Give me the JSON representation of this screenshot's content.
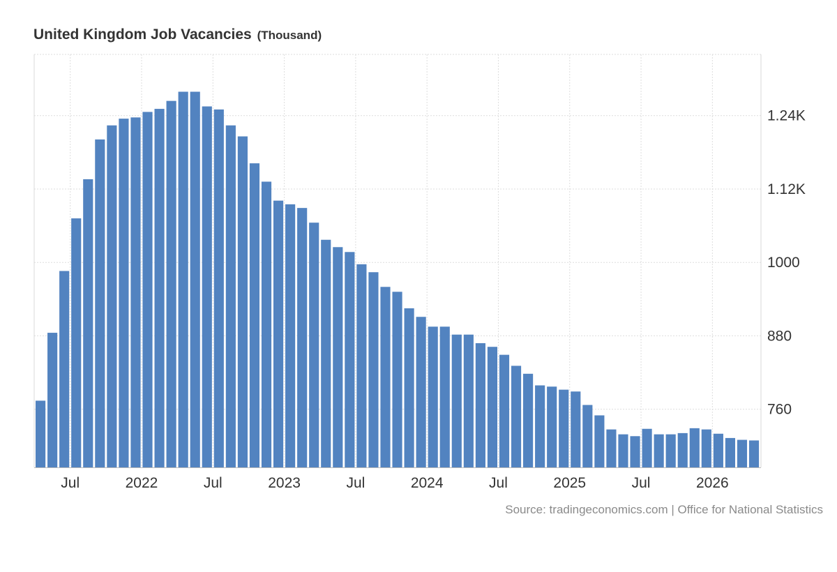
{
  "title": "United Kingdom Job Vacancies",
  "unit": "(Thousand)",
  "source": "Source: tradingeconomics.com | Office for National Statistics",
  "colors": {
    "bar": "#5283c0",
    "grid": "#dddddd",
    "axis_text": "#333333",
    "source_text": "#8a8a8a"
  },
  "chart_data": {
    "type": "bar",
    "title": "United Kingdom Job Vacancies",
    "ylabel": "",
    "xlabel": "",
    "ylim": [
      665,
      1340
    ],
    "y_ticks": [
      {
        "value": 760,
        "label": "760"
      },
      {
        "value": 880,
        "label": "880"
      },
      {
        "value": 1000,
        "label": "1000"
      },
      {
        "value": 1120,
        "label": "1.12K"
      },
      {
        "value": 1240,
        "label": "1.24K"
      }
    ],
    "x_ticks": [
      {
        "date": "2021-07",
        "label": "Jul"
      },
      {
        "date": "2022-01",
        "label": "2022"
      },
      {
        "date": "2022-07",
        "label": "Jul"
      },
      {
        "date": "2023-01",
        "label": "2023"
      },
      {
        "date": "2023-07",
        "label": "Jul"
      },
      {
        "date": "2024-01",
        "label": "2024"
      },
      {
        "date": "2024-07",
        "label": "Jul"
      },
      {
        "date": "2025-01",
        "label": "2025"
      },
      {
        "date": "2025-07",
        "label": "Jul"
      },
      {
        "date": "2026-01",
        "label": "2026"
      }
    ],
    "grid": true,
    "categories": [
      "2021-04",
      "2021-05",
      "2021-06",
      "2021-07",
      "2021-08",
      "2021-09",
      "2021-10",
      "2021-11",
      "2021-12",
      "2022-01",
      "2022-02",
      "2022-03",
      "2022-04",
      "2022-05",
      "2022-06",
      "2022-07",
      "2022-08",
      "2022-09",
      "2022-10",
      "2022-11",
      "2022-12",
      "2023-01",
      "2023-02",
      "2023-03",
      "2023-04",
      "2023-05",
      "2023-06",
      "2023-07",
      "2023-08",
      "2023-09",
      "2023-10",
      "2023-11",
      "2023-12",
      "2024-01",
      "2024-02",
      "2024-03",
      "2024-04",
      "2024-05",
      "2024-06",
      "2024-07",
      "2024-08",
      "2024-09",
      "2024-10",
      "2024-11",
      "2024-12",
      "2025-01",
      "2025-02",
      "2025-03",
      "2025-04",
      "2025-05",
      "2025-06",
      "2025-07",
      "2025-08",
      "2025-09",
      "2025-10",
      "2025-11",
      "2025-12",
      "2026-01",
      "2026-02",
      "2026-03",
      "2026-04"
    ],
    "values": [
      774,
      885,
      986,
      1072,
      1136,
      1201,
      1224,
      1235,
      1237,
      1246,
      1251,
      1264,
      1279,
      1279,
      1255,
      1250,
      1224,
      1206,
      1162,
      1132,
      1101,
      1095,
      1089,
      1065,
      1037,
      1025,
      1017,
      997,
      984,
      960,
      952,
      925,
      911,
      895,
      895,
      882,
      882,
      868,
      862,
      849,
      831,
      818,
      799,
      797,
      792,
      789,
      767,
      750,
      727,
      719,
      716,
      728,
      719,
      719,
      721,
      729,
      727,
      720,
      713,
      710,
      709
    ]
  }
}
